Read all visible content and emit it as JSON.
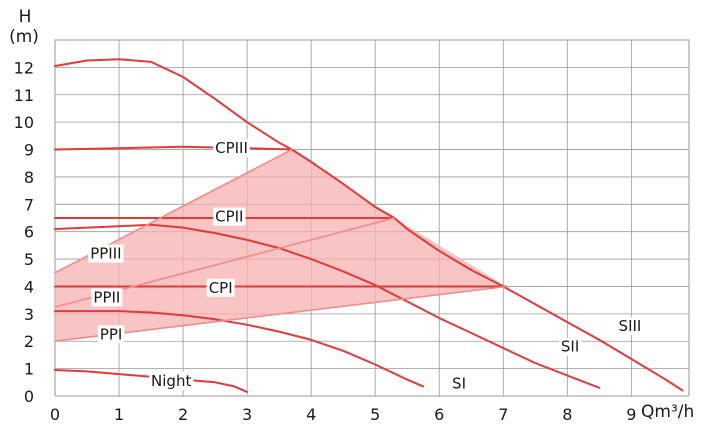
{
  "chart_data": {
    "type": "line",
    "title": "",
    "ylabel": "H",
    "ylabel_unit": "(m)",
    "xlabel": "Qm³/h",
    "xlim": [
      0,
      9.9
    ],
    "ylim": [
      0,
      13
    ],
    "xticks": [
      0,
      1,
      2,
      3,
      4,
      5,
      6,
      7,
      8,
      9
    ],
    "yticks": [
      0,
      1,
      2,
      3,
      4,
      5,
      6,
      7,
      8,
      9,
      10,
      11,
      12
    ],
    "grid": true,
    "colors": {
      "curve": "#e03a3a",
      "area": "#f7b0b0",
      "area_line": "#f08c8c",
      "grid": "#9a9a9a"
    },
    "series": [
      {
        "name": "SIII",
        "x": [
          0,
          0.5,
          1,
          1.5,
          2,
          2.5,
          3,
          3.5,
          3.7,
          4,
          4.5,
          5,
          5.3,
          5.5,
          6,
          6.5,
          7,
          7.5,
          8,
          8.5,
          9,
          9.5,
          9.8
        ],
        "y": [
          12.05,
          12.25,
          12.3,
          12.2,
          11.65,
          10.85,
          10.0,
          9.25,
          9.0,
          8.55,
          7.75,
          6.9,
          6.5,
          6.1,
          5.3,
          4.6,
          4.0,
          3.35,
          2.7,
          2.05,
          1.35,
          0.65,
          0.2
        ]
      },
      {
        "name": "SII",
        "x": [
          0,
          0.5,
          1,
          1.5,
          2,
          2.5,
          3,
          3.5,
          4,
          4.5,
          5,
          5.5,
          6,
          6.5,
          7,
          7.5,
          8,
          8.5
        ],
        "y": [
          6.1,
          6.15,
          6.2,
          6.25,
          6.15,
          5.95,
          5.7,
          5.4,
          5.0,
          4.55,
          4.05,
          3.45,
          2.85,
          2.3,
          1.75,
          1.2,
          0.75,
          0.3
        ]
      },
      {
        "name": "SI",
        "x": [
          0,
          0.5,
          1,
          1.5,
          2,
          2.5,
          3,
          3.5,
          4,
          4.5,
          5,
          5.5,
          5.75
        ],
        "y": [
          3.1,
          3.1,
          3.1,
          3.05,
          2.95,
          2.8,
          2.6,
          2.35,
          2.05,
          1.65,
          1.15,
          0.6,
          0.35
        ]
      },
      {
        "name": "Night",
        "x": [
          0,
          0.5,
          1,
          1.5,
          2,
          2.5,
          2.8,
          3.0
        ],
        "y": [
          0.95,
          0.9,
          0.8,
          0.7,
          0.6,
          0.5,
          0.35,
          0.15
        ]
      },
      {
        "name": "CPIII",
        "x": [
          0,
          1,
          2,
          3,
          3.7
        ],
        "y": [
          9.0,
          9.05,
          9.1,
          9.05,
          9.0
        ]
      },
      {
        "name": "CPII",
        "x": [
          0,
          1,
          2,
          3,
          4,
          5.3
        ],
        "y": [
          6.5,
          6.5,
          6.5,
          6.5,
          6.5,
          6.5
        ]
      },
      {
        "name": "CPI",
        "x": [
          0,
          1,
          2,
          3,
          4,
          5,
          6,
          7.05
        ],
        "y": [
          4.0,
          4.0,
          4.0,
          4.0,
          4.0,
          4.0,
          4.0,
          4.0
        ]
      },
      {
        "name": "PPIII",
        "x": [
          0,
          3.7
        ],
        "y": [
          4.5,
          9.0
        ]
      },
      {
        "name": "PPII",
        "x": [
          0,
          5.3
        ],
        "y": [
          3.25,
          6.5
        ]
      },
      {
        "name": "PPI",
        "x": [
          0,
          7.05
        ],
        "y": [
          2.0,
          4.0
        ]
      }
    ],
    "shaded_region": {
      "x": [
        0,
        3.7,
        5.3,
        7.05,
        0
      ],
      "y": [
        4.5,
        9.0,
        6.5,
        4.0,
        2.0
      ]
    },
    "labels": [
      {
        "text": "CPIII",
        "x": 2.5,
        "y": 9.05
      },
      {
        "text": "CPII",
        "x": 2.5,
        "y": 6.55
      },
      {
        "text": "CPI",
        "x": 2.4,
        "y": 3.95
      },
      {
        "text": "PPIII",
        "x": 0.55,
        "y": 5.2
      },
      {
        "text": "PPII",
        "x": 0.6,
        "y": 3.6
      },
      {
        "text": "PPI",
        "x": 0.7,
        "y": 2.25
      },
      {
        "text": "SIII",
        "x": 8.8,
        "y": 2.55
      },
      {
        "text": "SII",
        "x": 7.9,
        "y": 1.8
      },
      {
        "text": "SI",
        "x": 6.2,
        "y": 0.45
      },
      {
        "text": "Night",
        "x": 1.5,
        "y": 0.55
      }
    ]
  }
}
